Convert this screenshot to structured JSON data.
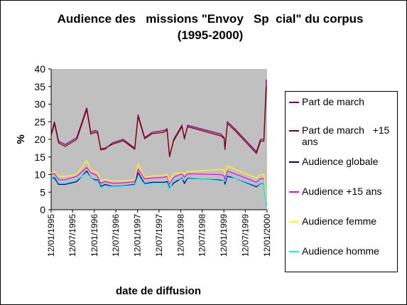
{
  "chart_data": {
    "type": "line",
    "title": "Audience des   missions \"Envoy   Sp  cial\" du corpus (1995-2000)",
    "xlabel": "date de diffusion",
    "ylabel": "%",
    "ylim": [
      0,
      40
    ],
    "yticks": [
      "0",
      "5",
      "10",
      "15",
      "20",
      "25",
      "30",
      "35",
      "40"
    ],
    "xlim": [
      "1995-01-12",
      "2000-01-12"
    ],
    "xticks": [
      {
        "date": "1995-01-12",
        "label": "12/01/1995"
      },
      {
        "date": "1995-07-12",
        "label": "12/07/1995"
      },
      {
        "date": "1996-01-12",
        "label": "12/01/1996"
      },
      {
        "date": "1996-07-12",
        "label": "12/07/1996"
      },
      {
        "date": "1997-01-12",
        "label": "12/01/1997"
      },
      {
        "date": "1997-07-12",
        "label": "12/07/1997"
      },
      {
        "date": "1998-01-12",
        "label": "12/01/1998"
      },
      {
        "date": "1998-07-12",
        "label": "12/07/1998"
      },
      {
        "date": "1999-01-12",
        "label": "12/01/1999"
      },
      {
        "date": "1999-07-12",
        "label": "12/07/1999"
      },
      {
        "date": "2000-01-12",
        "label": "12/01/2000"
      }
    ],
    "grid": false,
    "plot_background": "#c0c0c0",
    "legend_position": "right",
    "x": [
      "1995-01-12",
      "1995-02-09",
      "1995-03-16",
      "1995-05-11",
      "1995-08-17",
      "1995-11-09",
      "1995-12-14",
      "1996-01-18",
      "1996-02-08",
      "1996-03-07",
      "1996-04-11",
      "1996-06-13",
      "1996-09-12",
      "1996-12-19",
      "1997-01-16",
      "1997-03-13",
      "1997-05-15",
      "1997-08-21",
      "1997-09-18",
      "1997-10-09",
      "1997-11-13",
      "1998-01-22",
      "1998-02-12",
      "1998-03-12",
      "1998-12-17",
      "1999-01-14",
      "1999-01-21",
      "1999-02-11",
      "1999-04-15",
      "1999-10-14",
      "1999-11-18",
      "1999-12-16",
      "2000-01-06"
    ],
    "series": [
      {
        "name": "Part de march",
        "color": "#800080",
        "values": [
          21.5,
          25,
          19.5,
          18.5,
          20.5,
          29,
          22,
          22.5,
          22.3,
          17,
          17.2,
          19,
          20,
          17.5,
          27,
          20.5,
          22,
          22.5,
          23,
          15,
          20,
          24,
          20,
          24,
          21.5,
          20.5,
          17,
          25,
          23,
          16.5,
          20,
          20,
          37
        ]
      },
      {
        "name": "Part de march   +15 ans",
        "color": "#800000",
        "values": [
          21,
          24.5,
          19,
          18,
          20,
          28.5,
          21.5,
          22,
          21.8,
          17.3,
          17.5,
          18.6,
          19.6,
          17.2,
          26.5,
          20.2,
          21.6,
          22,
          22.6,
          15.3,
          19.6,
          23.6,
          20.5,
          23.6,
          21,
          20.2,
          17.5,
          24.5,
          22.5,
          16,
          19.5,
          19.5,
          35
        ]
      },
      {
        "name": "Audience globale",
        "color": "#000080",
        "values": [
          9,
          9,
          7.2,
          7.2,
          8,
          11,
          9,
          8.5,
          8.5,
          6.6,
          7.2,
          6.6,
          6.8,
          7.2,
          10.5,
          7.4,
          7.8,
          7.8,
          8,
          6.2,
          7.6,
          9,
          7.5,
          9,
          8.4,
          8.2,
          7.4,
          9.5,
          9,
          6.5,
          7.5,
          7.5,
          1
        ]
      },
      {
        "name": "Audience +15 ans",
        "color": "#ff00ff",
        "values": [
          10,
          10.3,
          8.5,
          8.5,
          9.5,
          12,
          10.5,
          10,
          9.5,
          7.5,
          8,
          7.5,
          7.6,
          8,
          11.5,
          8.8,
          9,
          9.2,
          9.5,
          7.4,
          9.2,
          10.2,
          9.2,
          10.2,
          10,
          9.6,
          8.5,
          11,
          10.2,
          7.8,
          8.8,
          8.8,
          1.5
        ]
      },
      {
        "name": "Audience femme",
        "color": "#ffff00",
        "values": [
          10.5,
          10.7,
          9.5,
          9.5,
          10,
          14,
          11,
          10.8,
          10.5,
          8.2,
          8.6,
          8.2,
          8.2,
          8.5,
          13,
          9.2,
          9.6,
          9.8,
          10,
          8,
          10.3,
          10.5,
          10.2,
          10.8,
          11.5,
          11.2,
          10,
          12.5,
          11.5,
          9,
          10,
          10,
          2
        ]
      },
      {
        "name": "Audience homme",
        "color": "#00ffff",
        "values": [
          9,
          9.6,
          7.6,
          7.6,
          8.5,
          10.5,
          9,
          8.2,
          8.2,
          6.2,
          6.8,
          6.5,
          6.7,
          7,
          9.5,
          7.2,
          7.5,
          7.4,
          7.6,
          5.8,
          8.5,
          8.8,
          8.3,
          9.2,
          8.2,
          8.2,
          8,
          10,
          9,
          6.8,
          7.6,
          7.6,
          1
        ]
      }
    ]
  }
}
